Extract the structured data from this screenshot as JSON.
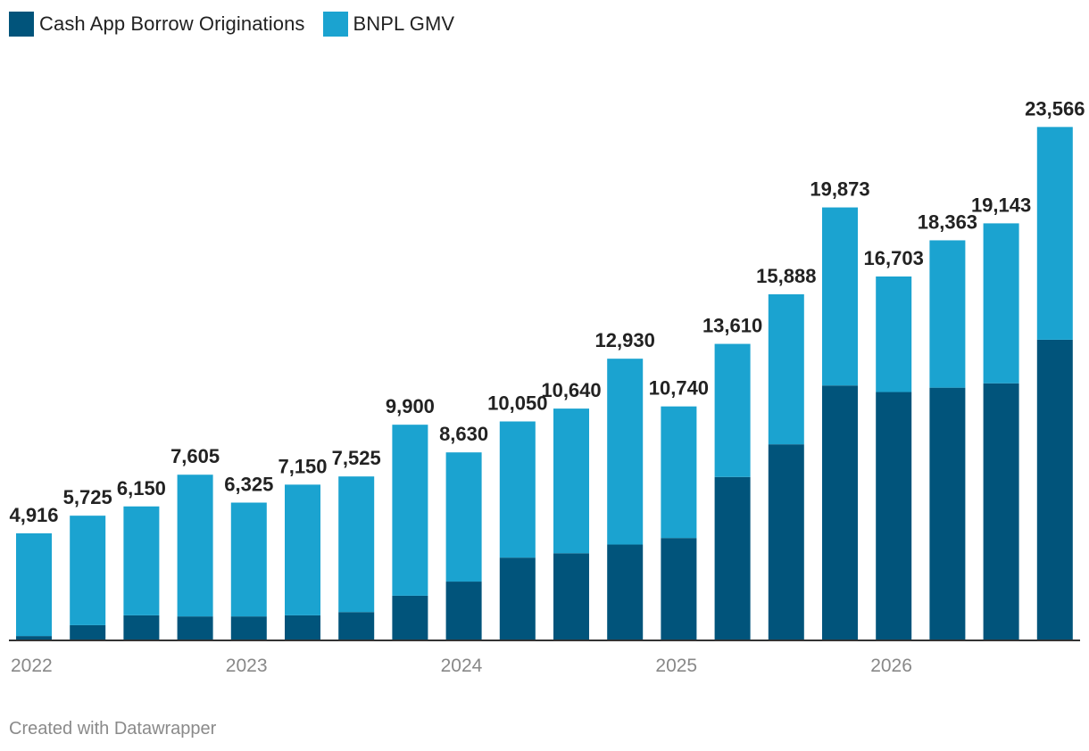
{
  "colors": {
    "borrow": "#01547b",
    "bnpl": "#1ba3d0",
    "axis": "#333333",
    "tick_text": "#888888",
    "label_text": "#222222"
  },
  "legend": [
    {
      "name": "Cash App Borrow Originations",
      "color": "#01547b"
    },
    {
      "name": "BNPL GMV",
      "color": "#1ba3d0"
    }
  ],
  "chart_data": {
    "type": "bar",
    "stacked": true,
    "title": "",
    "xlabel": "",
    "ylabel": "",
    "ylim": [
      0,
      25300
    ],
    "x_tick_labels": [
      "2022",
      "2023",
      "2024",
      "2025",
      "2026"
    ],
    "x_tick_at_bar": [
      0,
      4,
      8,
      12,
      16
    ],
    "series": [
      {
        "name": "Cash App Borrow Originations",
        "values": [
          200,
          700,
          1150,
          1100,
          1100,
          1150,
          1300,
          2050,
          2700,
          3800,
          4000,
          4400,
          4700,
          7500,
          9000,
          11700,
          11400,
          11600,
          11800,
          13800
        ]
      },
      {
        "name": "BNPL GMV",
        "values": [
          4716,
          5025,
          5000,
          6505,
          5225,
          6000,
          6225,
          7850,
          5930,
          6250,
          6640,
          8530,
          6040,
          6110,
          6888,
          8173,
          5303,
          6763,
          7343,
          9766
        ]
      }
    ],
    "totals": [
      "4,916",
      "5,725",
      "6,150",
      "7,605",
      "6,325",
      "7,150",
      "7,525",
      "9,900",
      "8,630",
      "10,050",
      "10,640",
      "12,930",
      "10,740",
      "13,610",
      "15,888",
      "19,873",
      "16,703",
      "18,363",
      "19,143",
      "23,566"
    ]
  },
  "footer": {
    "credit": "Created with Datawrapper"
  }
}
